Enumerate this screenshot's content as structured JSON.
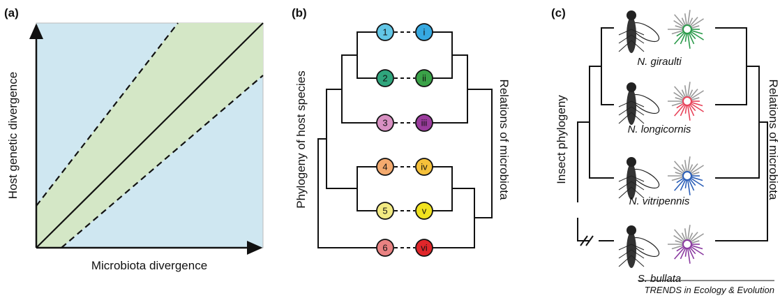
{
  "panels": {
    "a": {
      "label": "(a)",
      "y_axis": "Host genetic divergence",
      "x_axis": "Microbiota divergence"
    },
    "b": {
      "label": "(b)",
      "left_title": "Phylogeny of host species",
      "right_title": "Relations of microbiota",
      "hosts": [
        "1",
        "2",
        "3",
        "4",
        "5",
        "6"
      ],
      "microbiota": [
        "i",
        "ii",
        "iii",
        "iv",
        "v",
        "vi"
      ]
    },
    "c": {
      "label": "(c)",
      "left_title": "Insect phylogeny",
      "right_title": "Relations of microbiota",
      "species": [
        "N. giraulti",
        "N. longicornis",
        "N. vitripennis",
        "S. bullata"
      ]
    }
  },
  "footer": "TRENDS in Ecology & Evolution"
}
